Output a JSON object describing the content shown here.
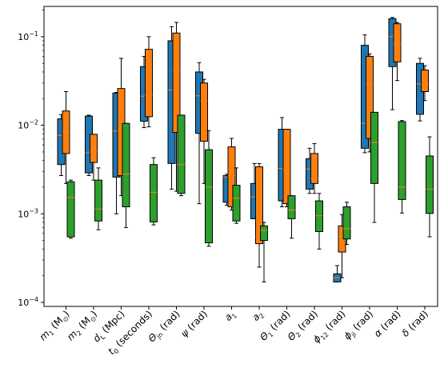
{
  "chart_data": {
    "type": "box",
    "y_scale": "log",
    "ylim": [
      9e-05,
      0.22
    ],
    "y_ticks": [
      {
        "value": 0.0001,
        "base": "10",
        "exp": "−4"
      },
      {
        "value": 0.001,
        "base": "10",
        "exp": "−3"
      },
      {
        "value": 0.01,
        "base": "10",
        "exp": "−2"
      },
      {
        "value": 0.1,
        "base": "10",
        "exp": "−1"
      }
    ],
    "grid": false,
    "legend": "none",
    "colors": [
      "#1f77b4",
      "#ff7f0e",
      "#2ca02c"
    ],
    "median_color": "#ff7f0e",
    "categories": [
      {
        "label": "m_1 (M_⊙)",
        "main": "m",
        "sub": "1",
        "unit": " (M",
        "unit_sub": "⊙",
        "unit_end": ")"
      },
      {
        "label": "m_2 (M_⊙)",
        "main": "m",
        "sub": "2",
        "unit": " (M",
        "unit_sub": "⊙",
        "unit_end": ")"
      },
      {
        "label": "d_L (Mpc)",
        "main": "d",
        "sub": "L",
        "unit": " (Mpc)"
      },
      {
        "label": "t_0 (seconds)",
        "main": "t",
        "sub": "0",
        "unit": " (seconds)"
      },
      {
        "label": "Θ_jn (rad)",
        "main": "Θ",
        "sub": "jn",
        "unit": " (rad)"
      },
      {
        "label": "ψ (rad)",
        "main": "ψ",
        "sub": "",
        "unit": " (rad)"
      },
      {
        "label": "a_1",
        "main": "a",
        "sub": "1",
        "unit": ""
      },
      {
        "label": "a_2",
        "main": "a",
        "sub": "2",
        "unit": ""
      },
      {
        "label": "Θ_1 (rad)",
        "main": "Θ",
        "sub": "1",
        "unit": " (rad)"
      },
      {
        "label": "Θ_2 (rad)",
        "main": "Θ",
        "sub": "2",
        "unit": " (rad)"
      },
      {
        "label": "ϕ_12 (rad)",
        "main": "ϕ",
        "sub": "12",
        "unit": " (rad)"
      },
      {
        "label": "ϕ_jl (rad)",
        "main": "ϕ",
        "sub": "jl",
        "unit": " (rad)"
      },
      {
        "label": "α (rad)",
        "main": "α",
        "sub": "",
        "unit": " (rad)"
      },
      {
        "label": "δ (rad)",
        "main": "δ",
        "sub": "",
        "unit": " (rad)"
      }
    ],
    "series": [
      {
        "boxes": [
          {
            "category": 0,
            "whislo": 0.0027,
            "q1": 0.0036,
            "median": 0.0077,
            "q3": 0.0118,
            "whishi": 0.0132
          },
          {
            "category": 1,
            "whislo": 0.0027,
            "q1": 0.0029,
            "median": 0.0049,
            "q3": 0.0127,
            "whishi": 0.013
          },
          {
            "category": 2,
            "whislo": 0.001,
            "q1": 0.0026,
            "median": 0.0086,
            "q3": 0.0231,
            "whishi": 0.0235
          },
          {
            "category": 3,
            "whislo": 0.0094,
            "q1": 0.0111,
            "median": 0.0213,
            "q3": 0.046,
            "whishi": 0.06
          },
          {
            "category": 4,
            "whislo": 0.0019,
            "q1": 0.0037,
            "median": 0.025,
            "q3": 0.09,
            "whishi": 0.13
          },
          {
            "category": 5,
            "whislo": 0.0013,
            "q1": 0.0081,
            "median": 0.0215,
            "q3": 0.04,
            "whishi": 0.051
          },
          {
            "category": 6,
            "whislo": 0.00125,
            "q1": 0.00135,
            "median": 0.0026,
            "q3": 0.0027,
            "whishi": 0.0028
          },
          {
            "category": 7,
            "whislo": 0.00088,
            "q1": 0.00088,
            "median": 0.00155,
            "q3": 0.0022,
            "whishi": 0.0037
          },
          {
            "category": 8,
            "whislo": 0.0012,
            "q1": 0.0014,
            "median": 0.00325,
            "q3": 0.009,
            "whishi": 0.0122
          },
          {
            "category": 9,
            "whislo": 0.0017,
            "q1": 0.0019,
            "median": 0.0032,
            "q3": 0.0042,
            "whishi": 0.0055
          },
          {
            "category": 10,
            "whislo": 0.00017,
            "q1": 0.00017,
            "median": 0.00019,
            "q3": 0.00021,
            "whishi": 0.00026
          },
          {
            "category": 11,
            "whislo": 0.0049,
            "q1": 0.0055,
            "median": 0.0105,
            "q3": 0.08,
            "whishi": 0.105
          },
          {
            "category": 12,
            "whislo": 0.015,
            "q1": 0.046,
            "median": 0.1,
            "q3": 0.16,
            "whishi": 0.165
          },
          {
            "category": 13,
            "whislo": 0.0112,
            "q1": 0.0133,
            "median": 0.0294,
            "q3": 0.05,
            "whishi": 0.057
          }
        ]
      },
      {
        "boxes": [
          {
            "category": 0,
            "whislo": 0.0022,
            "q1": 0.0048,
            "median": 0.0085,
            "q3": 0.0145,
            "whishi": 0.024
          },
          {
            "category": 1,
            "whislo": 0.0024,
            "q1": 0.0038,
            "median": 0.0051,
            "q3": 0.0079,
            "whishi": 0.0079
          },
          {
            "category": 2,
            "whislo": 0.0016,
            "q1": 0.0027,
            "median": 0.0088,
            "q3": 0.026,
            "whishi": 0.057
          },
          {
            "category": 3,
            "whislo": 0.0096,
            "q1": 0.0125,
            "median": 0.022,
            "q3": 0.072,
            "whishi": 0.1
          },
          {
            "category": 4,
            "whislo": 0.0018,
            "q1": 0.0083,
            "median": 0.042,
            "q3": 0.11,
            "whishi": 0.145
          },
          {
            "category": 5,
            "whislo": 0.0022,
            "q1": 0.0066,
            "median": 0.019,
            "q3": 0.03,
            "whishi": 0.033
          },
          {
            "category": 6,
            "whislo": 0.0011,
            "q1": 0.0012,
            "median": 0.0027,
            "q3": 0.0057,
            "whishi": 0.0071
          },
          {
            "category": 7,
            "whislo": 0.00025,
            "q1": 0.00046,
            "median": 0.00055,
            "q3": 0.0034,
            "whishi": 0.0037
          },
          {
            "category": 8,
            "whislo": 0.0012,
            "q1": 0.0013,
            "median": 0.0031,
            "q3": 0.009,
            "whishi": 0.009
          },
          {
            "category": 9,
            "whislo": 0.0017,
            "q1": 0.0022,
            "median": 0.0025,
            "q3": 0.0048,
            "whishi": 0.0062
          },
          {
            "category": 10,
            "whislo": 0.00019,
            "q1": 0.00037,
            "median": 0.00056,
            "q3": 0.00073,
            "whishi": 0.00098
          },
          {
            "category": 11,
            "whislo": 0.005,
            "q1": 0.0071,
            "median": 0.029,
            "q3": 0.06,
            "whishi": 0.064
          },
          {
            "category": 12,
            "whislo": 0.032,
            "q1": 0.052,
            "median": 0.084,
            "q3": 0.14,
            "whishi": 0.145
          },
          {
            "category": 13,
            "whislo": 0.019,
            "q1": 0.024,
            "median": 0.029,
            "q3": 0.042,
            "whishi": 0.047
          }
        ]
      },
      {
        "boxes": [
          {
            "category": 0,
            "whislo": 0.00053,
            "q1": 0.00055,
            "median": 0.00153,
            "q3": 0.0023,
            "whishi": 0.0024
          },
          {
            "category": 1,
            "whislo": 0.00066,
            "q1": 0.00083,
            "median": 0.00113,
            "q3": 0.0024,
            "whishi": 0.0033
          },
          {
            "category": 2,
            "whislo": 0.0007,
            "q1": 0.0012,
            "median": 0.0028,
            "q3": 0.0105,
            "whishi": 0.0105
          },
          {
            "category": 3,
            "whislo": 0.00075,
            "q1": 0.00081,
            "median": 0.00175,
            "q3": 0.0036,
            "whishi": 0.0043
          },
          {
            "category": 4,
            "whislo": 0.0016,
            "q1": 0.0017,
            "median": 0.0036,
            "q3": 0.013,
            "whishi": 0.013
          },
          {
            "category": 5,
            "whislo": 0.00043,
            "q1": 0.00047,
            "median": 0.002,
            "q3": 0.0053,
            "whishi": 0.0087
          },
          {
            "category": 6,
            "whislo": 0.00078,
            "q1": 0.00083,
            "median": 0.0015,
            "q3": 0.0021,
            "whishi": 0.0033
          },
          {
            "category": 7,
            "whislo": 0.00017,
            "q1": 0.0005,
            "median": 0.00065,
            "q3": 0.00073,
            "whishi": 0.0008
          },
          {
            "category": 8,
            "whislo": 0.00053,
            "q1": 0.00088,
            "median": 0.0011,
            "q3": 0.0016,
            "whishi": 0.0016
          },
          {
            "category": 9,
            "whislo": 0.0004,
            "q1": 0.00063,
            "median": 0.00095,
            "q3": 0.0014,
            "whishi": 0.0017
          },
          {
            "category": 10,
            "whislo": 0.00045,
            "q1": 0.00052,
            "median": 0.00068,
            "q3": 0.0012,
            "whishi": 0.00135
          },
          {
            "category": 11,
            "whislo": 0.0008,
            "q1": 0.0022,
            "median": 0.0064,
            "q3": 0.014,
            "whishi": 0.014
          },
          {
            "category": 12,
            "whislo": 0.00102,
            "q1": 0.00145,
            "median": 0.002,
            "q3": 0.011,
            "whishi": 0.0113
          },
          {
            "category": 13,
            "whislo": 0.00055,
            "q1": 0.00101,
            "median": 0.0019,
            "q3": 0.0045,
            "whishi": 0.0074
          }
        ]
      }
    ]
  }
}
